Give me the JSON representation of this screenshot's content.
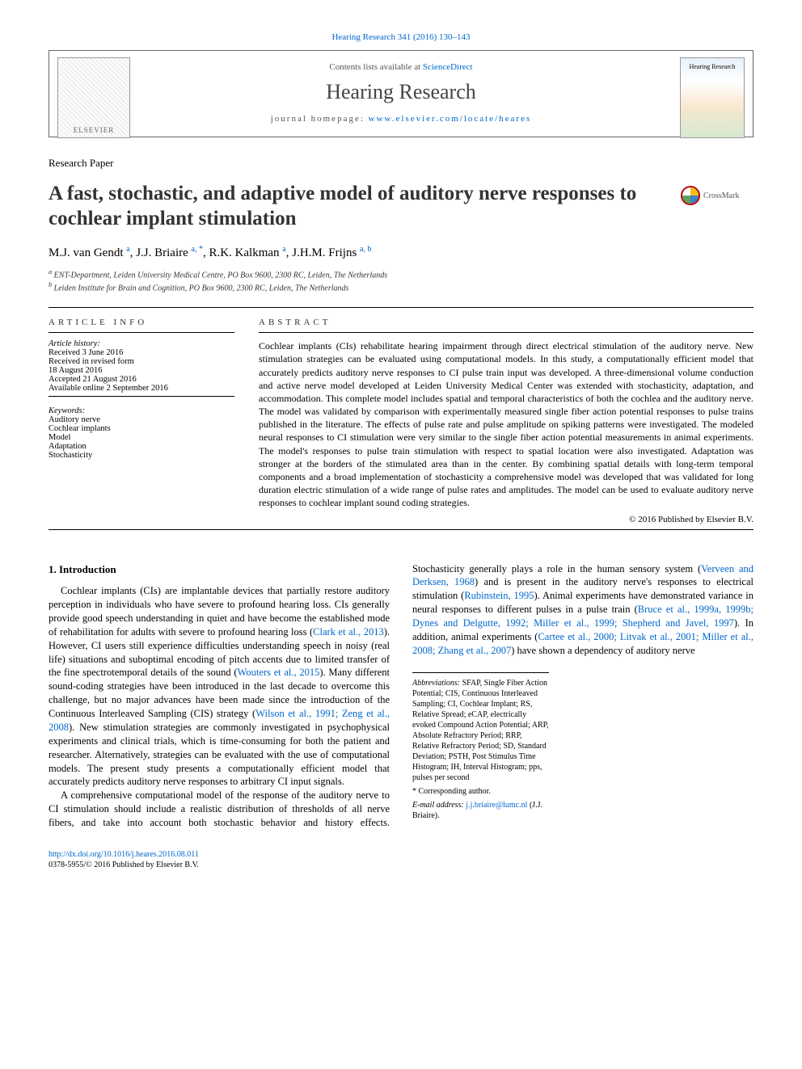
{
  "top_ref": {
    "text": "Hearing Research 341 (2016) 130–143",
    "link_color": "#0066cc"
  },
  "header": {
    "contents_prefix": "Contents lists available at ",
    "contents_link": "ScienceDirect",
    "journal_name": "Hearing Research",
    "homepage_prefix": "journal homepage: ",
    "homepage_url": "www.elsevier.com/locate/heares",
    "elsevier_label": "ELSEVIER",
    "cover_label": "Hearing Research"
  },
  "paper_type": "Research Paper",
  "title": "A fast, stochastic, and adaptive model of auditory nerve responses to cochlear implant stimulation",
  "crossmark_label": "CrossMark",
  "authors_html": "M.J. van Gendt <sup>a</sup>, J.J. Briaire <sup>a, *</sup>, R.K. Kalkman <sup>a</sup>, J.H.M. Frijns <sup>a, b</sup>",
  "affiliations": [
    "a ENT-Department, Leiden University Medical Centre, PO Box 9600, 2300 RC, Leiden, The Netherlands",
    "b Leiden Institute for Brain and Cognition, PO Box 9600, 2300 RC, Leiden, The Netherlands"
  ],
  "article_info": {
    "heading": "ARTICLE INFO",
    "history_label": "Article history:",
    "history": [
      "Received 3 June 2016",
      "Received in revised form",
      "18 August 2016",
      "Accepted 21 August 2016",
      "Available online 2 September 2016"
    ],
    "keywords_label": "Keywords:",
    "keywords": [
      "Auditory nerve",
      "Cochlear implants",
      "Model",
      "Adaptation",
      "Stochasticity"
    ]
  },
  "abstract": {
    "heading": "ABSTRACT",
    "text": "Cochlear implants (CIs) rehabilitate hearing impairment through direct electrical stimulation of the auditory nerve. New stimulation strategies can be evaluated using computational models. In this study, a computationally efficient model that accurately predicts auditory nerve responses to CI pulse train input was developed. A three-dimensional volume conduction and active nerve model developed at Leiden University Medical Center was extended with stochasticity, adaptation, and accommodation. This complete model includes spatial and temporal characteristics of both the cochlea and the auditory nerve. The model was validated by comparison with experimentally measured single fiber action potential responses to pulse trains published in the literature. The effects of pulse rate and pulse amplitude on spiking patterns were investigated. The modeled neural responses to CI stimulation were very similar to the single fiber action potential measurements in animal experiments. The model's responses to pulse train stimulation with respect to spatial location were also investigated. Adaptation was stronger at the borders of the stimulated area than in the center. By combining spatial details with long-term temporal components and a broad implementation of stochasticity a comprehensive model was developed that was validated for long duration electric stimulation of a wide range of pulse rates and amplitudes. The model can be used to evaluate auditory nerve responses to cochlear implant sound coding strategies.",
    "copyright": "© 2016 Published by Elsevier B.V."
  },
  "body": {
    "section_heading": "1. Introduction",
    "p1_pre": "Cochlear implants (CIs) are implantable devices that partially restore auditory perception in individuals who have severe to profound hearing loss. CIs generally provide good speech understanding in quiet and have become the established mode of rehabilitation for adults with severe to profound hearing loss (",
    "p1_link1": "Clark et al., 2013",
    "p1_mid": "). However, CI users still experience difficulties understanding speech in noisy (real life) situations and suboptimal encoding of pitch accents due to limited transfer of the fine spectrotemporal details of the sound (",
    "p1_link2": "Wouters et al., 2015",
    "p1_post": "). Many different sound-coding strategies have been introduced in the last decade to overcome this challenge, but no major advances have",
    "p2_pre": "been made since the introduction of the Continuous Interleaved Sampling (CIS) strategy (",
    "p2_link1": "Wilson et al., 1991; Zeng et al., 2008",
    "p2_post": "). New stimulation strategies are commonly investigated in psychophysical experiments and clinical trials, which is time-consuming for both the patient and researcher. Alternatively, strategies can be evaluated with the use of computational models. The present study presents a computationally efficient model that accurately predicts auditory nerve responses to arbitrary CI input signals.",
    "p3_pre": "A comprehensive computational model of the response of the auditory nerve to CI stimulation should include a realistic distribution of thresholds of all nerve fibers, and take into account both stochastic behavior and history effects. Stochasticity generally plays a role in the human sensory system (",
    "p3_link1": "Verveen and Derksen, 1968",
    "p3_mid1": ") and is present in the auditory nerve's responses to electrical stimulation (",
    "p3_link2": "Rubinstein, 1995",
    "p3_mid2": "). Animal experiments have demonstrated variance in neural responses to different pulses in a pulse train (",
    "p3_link3": "Bruce et al., 1999a, 1999b; Dynes and Delgutte, 1992; Miller et al., 1999; Shepherd and Javel, 1997",
    "p3_mid3": "). In addition, animal experiments (",
    "p3_link4": "Cartee et al., 2000; Litvak et al., 2001; Miller et al., 2008; Zhang et al., 2007",
    "p3_post": ") have shown a dependency of auditory nerve"
  },
  "footnotes": {
    "abbrev_label": "Abbreviations:",
    "abbrev_text": " SFAP, Single Fiber Action Potential; CIS, Continuous Interleaved Sampling; CI, Cochlear Implant; RS, Relative Spread; eCAP, electrically evoked Compound Action Potential; ARP, Absolute Refractory Period; RRP, Relative Refractory Period; SD, Standard Deviation; PSTH, Post Stimulus Time Histogram; IH, Interval Histogram; pps, pulses per second",
    "corresponding": "* Corresponding author.",
    "email_label": "E-mail address: ",
    "email": "j.j.briaire@lumc.nl",
    "email_suffix": " (J.J. Briaire)."
  },
  "doi": {
    "url": "http://dx.doi.org/10.1016/j.heares.2016.08.011",
    "issn_line": "0378-5955/© 2016 Published by Elsevier B.V."
  },
  "colors": {
    "link": "#0066cc",
    "text": "#000000",
    "background": "#ffffff",
    "rule": "#000000"
  }
}
